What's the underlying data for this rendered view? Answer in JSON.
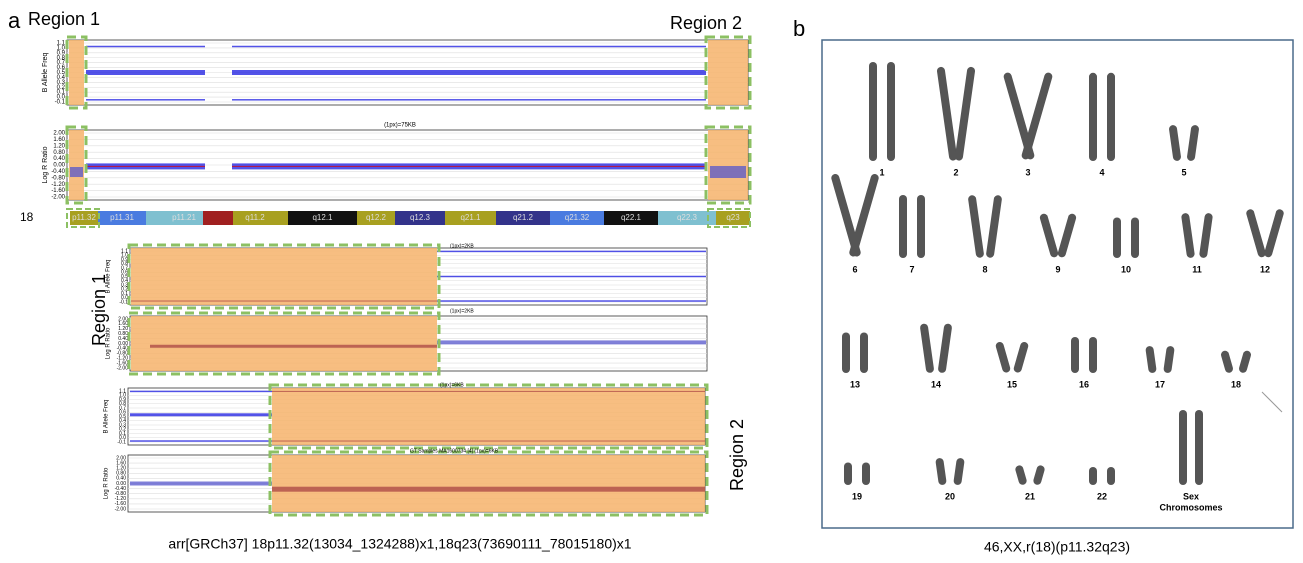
{
  "panel_a": {
    "label": "a",
    "region1_label": "Region 1",
    "region2_label": "Region 2",
    "baf_axis_label": "B Allele Freq",
    "baf_ticks": [
      "1.1",
      "1.0",
      "0.9",
      "0.8",
      "0.7",
      "0.6",
      "0.5",
      "0.4",
      "0.3",
      "0.2",
      "0.1",
      "0.0",
      "-0.1"
    ],
    "lrr_axis_label": "Log R Ratio",
    "lrr_ticks": [
      "2.00",
      "1.60",
      "1.20",
      "0.80",
      "0.40",
      "0.00",
      "-0.40",
      "-0.80",
      "-1.20",
      "-1.60",
      "-2.00"
    ],
    "overview_scale": "(1px)=75KB",
    "chromosome": "18",
    "bands": [
      "p11.32",
      "p11.31",
      "p11.21",
      "q11.2",
      "q12.1",
      "q12.2",
      "q12.3",
      "q21.1",
      "q21.2",
      "q21.32",
      "q22.1",
      "q22.3",
      "q23"
    ],
    "region1_scale": "(1px)=2KB",
    "region2_scale": "(1px)=6KB",
    "region2_sample": "GT Samples MA1600734 [4]  (1px)=6KB",
    "caption": "arr[GRCh37] 18p11.32(13034_1324288)x1,18q23(73690111_78015180)x1"
  },
  "panel_b": {
    "label": "b",
    "chromosomes": [
      "1",
      "2",
      "3",
      "4",
      "5",
      "6",
      "7",
      "8",
      "9",
      "10",
      "11",
      "12",
      "13",
      "14",
      "15",
      "16",
      "17",
      "18",
      "19",
      "20",
      "21",
      "22"
    ],
    "sex_label": [
      "Sex",
      "Chromosomes"
    ],
    "caption": "46,XX,r(18)(p11.32q23)"
  }
}
